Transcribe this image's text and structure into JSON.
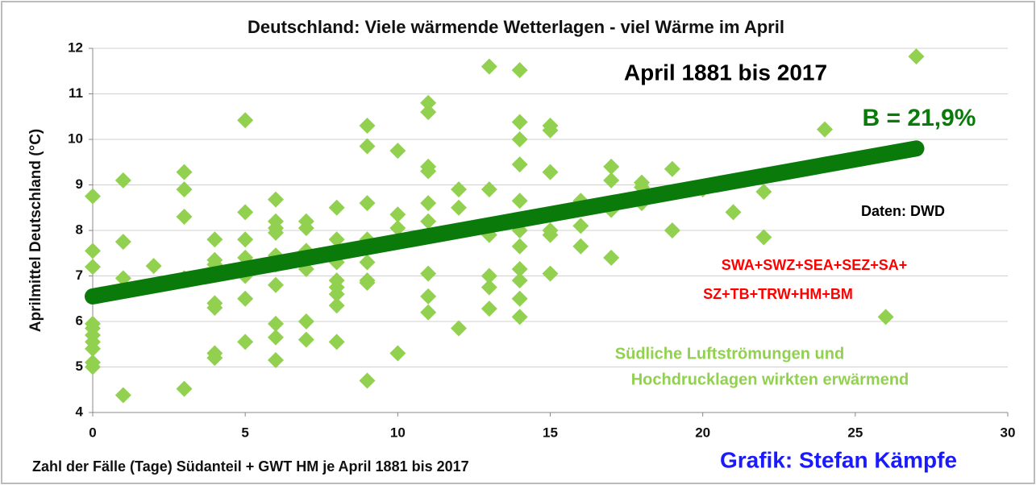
{
  "chart_data": {
    "type": "scatter",
    "title": "Deutschland: Viele  wärmende Wetterlagen - viel Wärme im April",
    "xlabel": "Zahl der Fälle  (Tage) Südanteil + GWT HM je April 1881 bis 2017",
    "ylabel": "Aprilmittel Deutschland (°C)",
    "annotations": [
      "April 1881 bis 2017",
      "B = 21,9%",
      "Daten: DWD",
      "SWA+SWZ+SEA+SEZ+SA+",
      "SZ+TB+TRW+HM+BM",
      "Südliche Luftströmungen und",
      "Hochdrucklagen wirkten erwärmend",
      "Grafik: Stefan Kämpfe"
    ],
    "color": "#92d050",
    "x": [
      0,
      0,
      0,
      0,
      0,
      0,
      0,
      0,
      0,
      0,
      1,
      1,
      1,
      1,
      2,
      3,
      3,
      3,
      3,
      3,
      4,
      4,
      4,
      4,
      4,
      4,
      4,
      5,
      5,
      5,
      5,
      5,
      5,
      5,
      6,
      6,
      6,
      6,
      6,
      6,
      6,
      6,
      6,
      6,
      7,
      7,
      7,
      7,
      7,
      7,
      8,
      8,
      8,
      8,
      8,
      8,
      8,
      8,
      9,
      9,
      9,
      9,
      9,
      9,
      9,
      9,
      10,
      10,
      10,
      10,
      11,
      11,
      11,
      11,
      11,
      11,
      11,
      11,
      11,
      12,
      12,
      12,
      13,
      13,
      13,
      13,
      13,
      13,
      14,
      14,
      14,
      14,
      14,
      14,
      14,
      14,
      14,
      14,
      14,
      15,
      15,
      15,
      15,
      15,
      15,
      16,
      16,
      16,
      17,
      17,
      17,
      17,
      18,
      18,
      18,
      19,
      19,
      20,
      21,
      22,
      22,
      24,
      26,
      27
    ],
    "values": [
      8.75,
      7.55,
      7.2,
      5.95,
      5.85,
      5.7,
      5.55,
      5.4,
      5.1,
      5.0,
      9.1,
      7.75,
      6.95,
      4.38,
      7.22,
      9.28,
      8.9,
      8.3,
      6.95,
      4.52,
      7.8,
      7.35,
      7.25,
      6.4,
      6.3,
      5.3,
      5.2,
      10.42,
      8.4,
      7.8,
      7.4,
      7.0,
      6.5,
      5.55,
      8.68,
      8.2,
      8.05,
      7.95,
      7.45,
      7.25,
      6.8,
      5.95,
      5.65,
      5.15,
      8.2,
      8.05,
      7.55,
      7.15,
      6.0,
      5.6,
      8.5,
      7.8,
      7.3,
      6.9,
      6.75,
      6.6,
      6.35,
      5.55,
      10.3,
      9.85,
      8.6,
      7.8,
      7.3,
      6.9,
      6.85,
      4.7,
      9.75,
      8.35,
      8.05,
      5.3,
      10.8,
      10.6,
      9.4,
      9.3,
      8.6,
      8.2,
      7.05,
      6.55,
      6.2,
      8.9,
      8.5,
      5.85,
      11.6,
      8.9,
      7.9,
      7.0,
      6.75,
      6.28,
      11.52,
      10.38,
      10.0,
      9.45,
      8.65,
      8.0,
      7.65,
      7.15,
      6.9,
      6.5,
      6.1,
      10.3,
      10.2,
      9.28,
      8.0,
      7.9,
      7.05,
      8.65,
      8.1,
      7.65,
      9.4,
      9.1,
      8.45,
      7.4,
      9.05,
      8.95,
      8.6,
      9.35,
      8.0,
      8.9,
      8.4,
      8.85,
      7.85,
      10.22,
      6.1,
      11.82
    ],
    "trend": {
      "color": "#0a7a0a",
      "x": [
        0,
        27
      ],
      "values": [
        6.55,
        9.8
      ]
    },
    "xlim": [
      0,
      30
    ],
    "xticks": [
      0,
      5,
      10,
      15,
      20,
      25,
      30
    ],
    "ylim": [
      4,
      12
    ],
    "yticks": [
      4,
      5,
      6,
      7,
      8,
      9,
      10,
      11,
      12
    ],
    "grid": true
  }
}
